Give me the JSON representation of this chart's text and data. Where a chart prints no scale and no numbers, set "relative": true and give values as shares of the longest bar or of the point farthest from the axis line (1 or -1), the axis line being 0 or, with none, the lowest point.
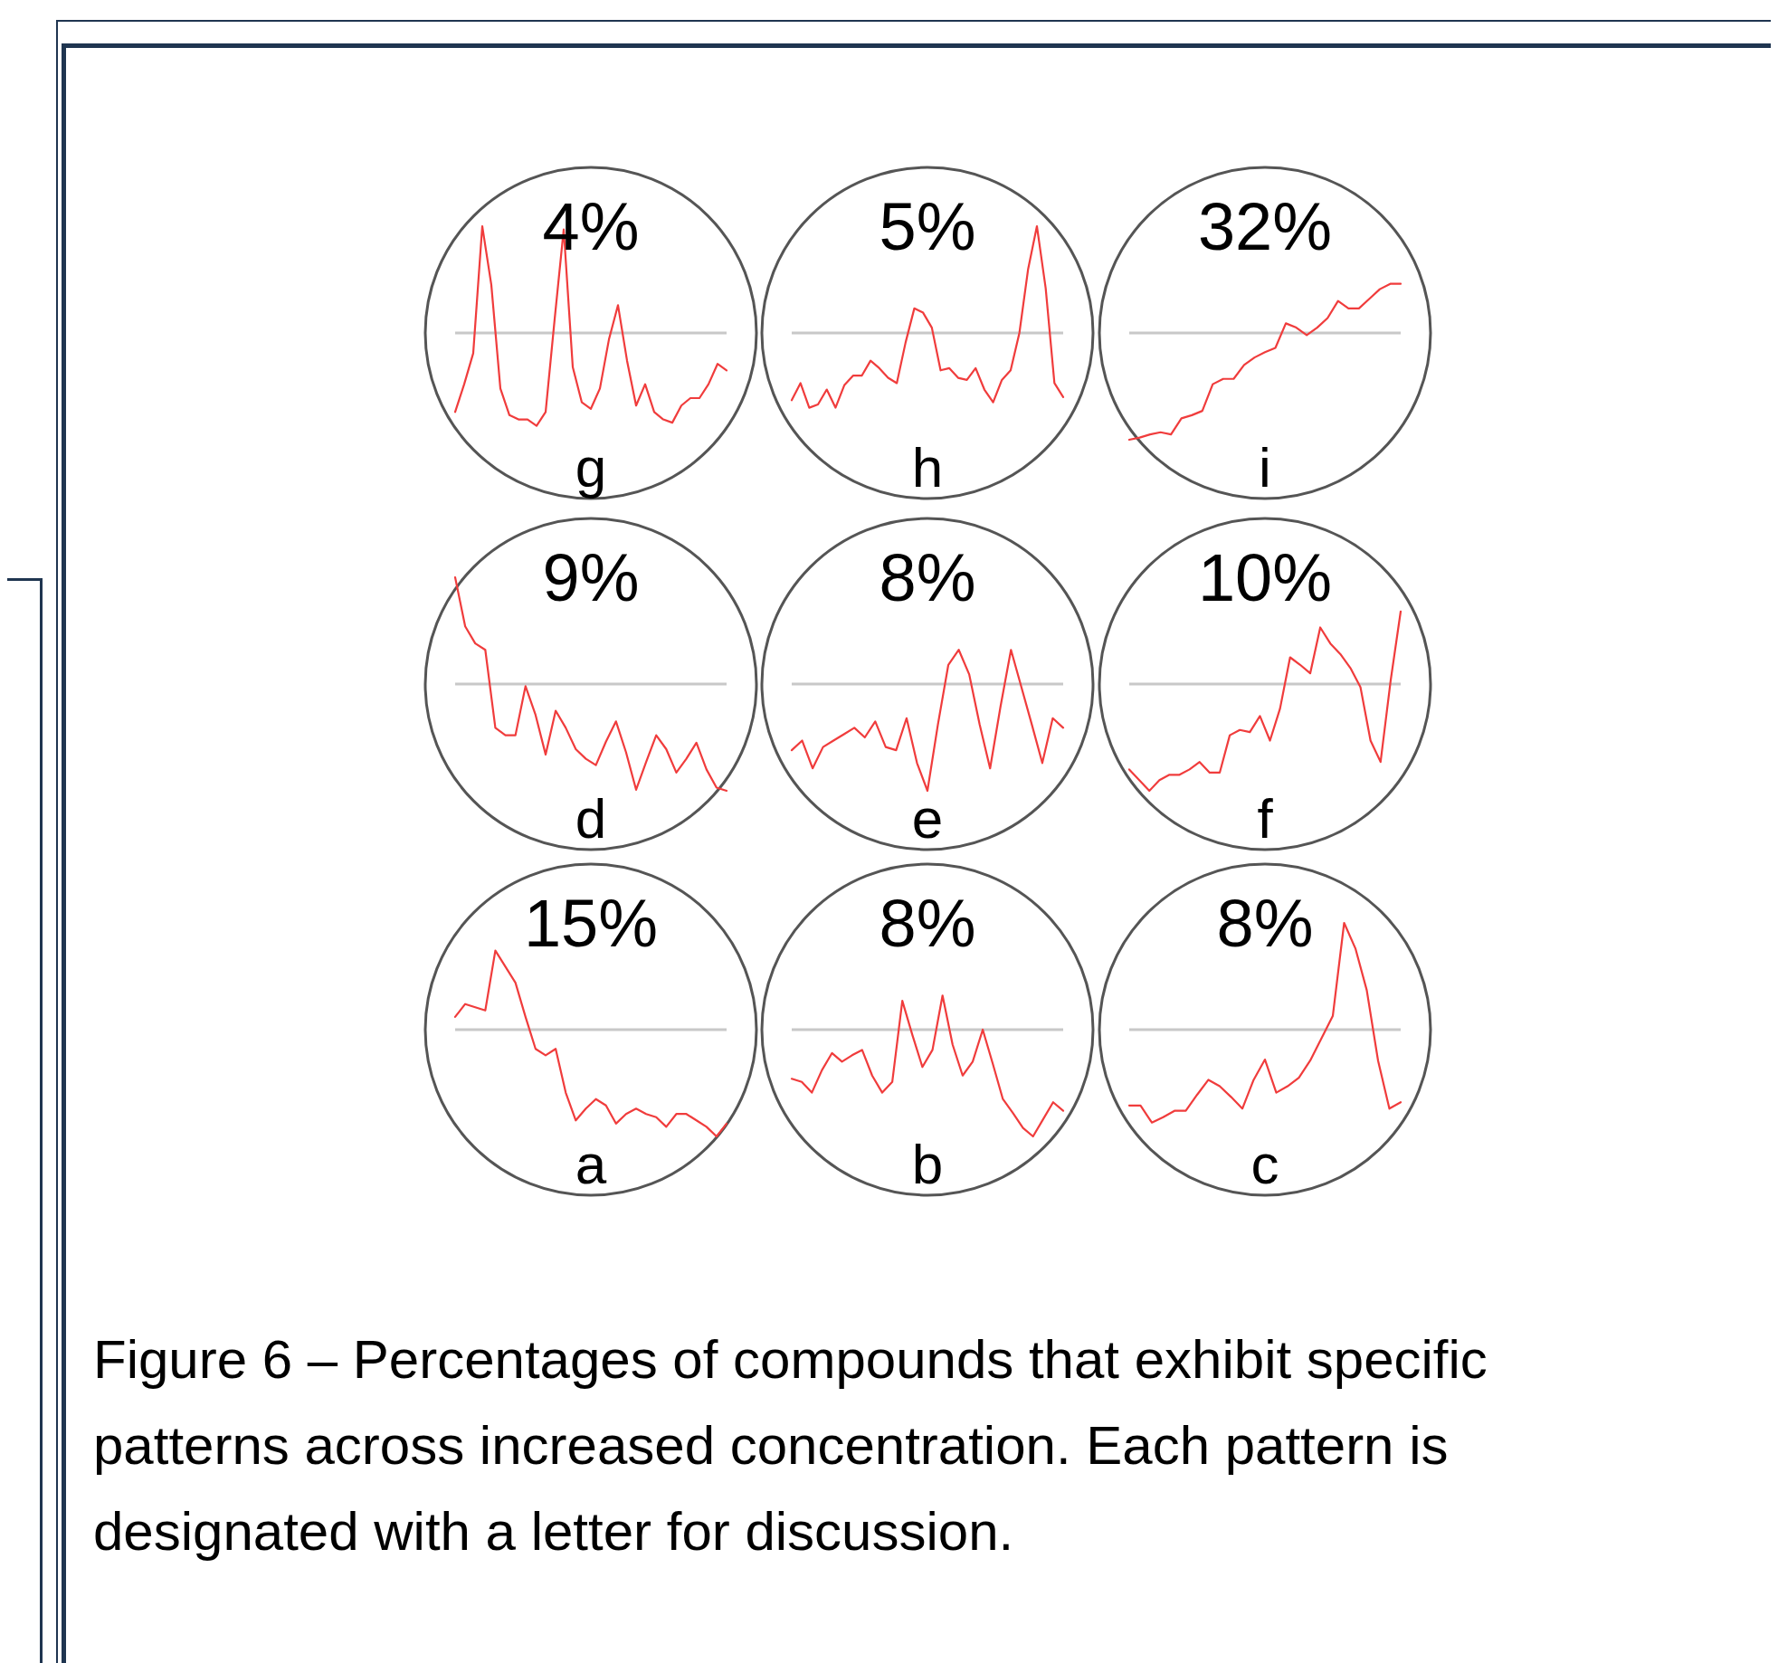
{
  "chart_data": [
    {
      "type": "line",
      "relative": true,
      "title": "4%",
      "xlabel": "g",
      "categories": [
        null,
        null,
        null,
        null,
        null,
        null,
        null,
        null,
        null,
        null,
        null,
        null,
        null,
        null,
        null,
        null,
        null,
        null,
        null,
        null,
        null,
        null,
        null,
        null,
        null,
        null,
        null,
        null,
        null,
        null,
        null
      ],
      "series": [
        {
          "color": "#f03c3c",
          "values": [
            -0.74,
            -0.48,
            -0.19,
            1.0,
            0.45,
            -0.52,
            -0.77,
            -0.81,
            -0.81,
            -0.87,
            -0.74,
            0.13,
            0.97,
            -0.32,
            -0.65,
            -0.71,
            -0.52,
            -0.06,
            0.26,
            -0.26,
            -0.68,
            -0.48,
            -0.74,
            -0.81,
            -0.84,
            -0.68,
            -0.61,
            -0.61,
            -0.48,
            -0.29,
            -0.35
          ]
        }
      ]
    },
    {
      "type": "line",
      "relative": true,
      "title": "5%",
      "xlabel": "h",
      "categories": [
        null,
        null,
        null,
        null,
        null,
        null,
        null,
        null,
        null,
        null,
        null,
        null,
        null,
        null,
        null,
        null,
        null,
        null,
        null,
        null,
        null,
        null,
        null,
        null,
        null,
        null,
        null,
        null,
        null,
        null,
        null,
        null
      ],
      "series": [
        {
          "color": "#f03c3c",
          "values": [
            -0.63,
            -0.47,
            -0.7,
            -0.67,
            -0.53,
            -0.7,
            -0.49,
            -0.4,
            -0.4,
            -0.26,
            -0.33,
            -0.42,
            -0.47,
            -0.09,
            0.23,
            0.19,
            0.05,
            -0.35,
            -0.33,
            -0.42,
            -0.44,
            -0.33,
            -0.53,
            -0.65,
            -0.44,
            -0.35,
            0,
            0.6,
            1.0,
            0.42,
            -0.47,
            -0.6
          ]
        }
      ]
    },
    {
      "type": "line",
      "relative": true,
      "title": "32%",
      "xlabel": "i",
      "categories": [
        null,
        null,
        null,
        null,
        null,
        null,
        null,
        null,
        null,
        null,
        null,
        null,
        null,
        null,
        null,
        null,
        null,
        null,
        null,
        null,
        null,
        null,
        null,
        null,
        null,
        null,
        null
      ],
      "series": [
        {
          "color": "#f03c3c",
          "values": [
            -1.0,
            -0.98,
            -0.95,
            -0.93,
            -0.95,
            -0.8,
            -0.77,
            -0.73,
            -0.48,
            -0.43,
            -0.43,
            -0.3,
            -0.23,
            -0.18,
            -0.14,
            0.09,
            0.05,
            -0.02,
            0.05,
            0.14,
            0.3,
            0.23,
            0.23,
            0.32,
            0.41,
            0.46,
            0.46
          ]
        }
      ]
    },
    {
      "type": "line",
      "relative": true,
      "title": "9%",
      "xlabel": "d",
      "categories": [
        null,
        null,
        null,
        null,
        null,
        null,
        null,
        null,
        null,
        null,
        null,
        null,
        null,
        null,
        null,
        null,
        null,
        null,
        null,
        null,
        null,
        null,
        null,
        null,
        null,
        null,
        null,
        null
      ],
      "series": [
        {
          "color": "#f03c3c",
          "values": [
            1.0,
            0.54,
            0.38,
            0.32,
            -0.41,
            -0.48,
            -0.48,
            -0.02,
            -0.29,
            -0.66,
            -0.25,
            -0.41,
            -0.61,
            -0.7,
            -0.76,
            -0.54,
            -0.35,
            -0.64,
            -0.99,
            -0.73,
            -0.48,
            -0.61,
            -0.83,
            -0.7,
            -0.55,
            -0.8,
            -0.97,
            -1.0
          ]
        }
      ]
    },
    {
      "type": "line",
      "relative": true,
      "title": "8%",
      "xlabel": "e",
      "categories": [
        null,
        null,
        null,
        null,
        null,
        null,
        null,
        null,
        null,
        null,
        null,
        null,
        null,
        null,
        null,
        null,
        null,
        null,
        null,
        null,
        null,
        null,
        null,
        null,
        null,
        null,
        null
      ],
      "series": [
        {
          "color": "#f03c3c",
          "values": [
            -0.62,
            -0.53,
            -0.79,
            -0.59,
            -0.53,
            -0.47,
            -0.41,
            -0.5,
            -0.35,
            -0.59,
            -0.62,
            -0.32,
            -0.74,
            -1.0,
            -0.38,
            0.18,
            0.32,
            0.09,
            -0.38,
            -0.79,
            -0.21,
            0.32,
            -0.03,
            -0.38,
            -0.74,
            -0.32,
            -0.41
          ]
        }
      ]
    },
    {
      "type": "line",
      "relative": true,
      "title": "10%",
      "xlabel": "f",
      "categories": [
        null,
        null,
        null,
        null,
        null,
        null,
        null,
        null,
        null,
        null,
        null,
        null,
        null,
        null,
        null,
        null,
        null,
        null,
        null,
        null,
        null,
        null,
        null,
        null,
        null,
        null,
        null,
        null
      ],
      "series": [
        {
          "color": "#f03c3c",
          "values": [
            -0.8,
            -0.9,
            -1.0,
            -0.9,
            -0.85,
            -0.85,
            -0.8,
            -0.73,
            -0.83,
            -0.83,
            -0.48,
            -0.43,
            -0.45,
            -0.3,
            -0.53,
            -0.23,
            0.25,
            0.18,
            0.1,
            0.53,
            0.38,
            0.28,
            0.15,
            -0.03,
            -0.53,
            -0.73,
            0.03,
            0.68
          ]
        }
      ]
    },
    {
      "type": "line",
      "relative": true,
      "title": "15%",
      "xlabel": "a",
      "categories": [
        null,
        null,
        null,
        null,
        null,
        null,
        null,
        null,
        null,
        null,
        null,
        null,
        null,
        null,
        null,
        null,
        null,
        null,
        null,
        null,
        null,
        null,
        null,
        null,
        null,
        null,
        null,
        null
      ],
      "series": [
        {
          "color": "#f03c3c",
          "values": [
            0.12,
            0.24,
            0.21,
            0.18,
            0.74,
            0.59,
            0.44,
            0.12,
            -0.18,
            -0.24,
            -0.18,
            -0.59,
            -0.85,
            -0.74,
            -0.65,
            -0.71,
            -0.88,
            -0.79,
            -0.74,
            -0.79,
            -0.82,
            -0.91,
            -0.79,
            -0.79,
            -0.85,
            -0.91,
            -1.0,
            -0.88
          ]
        }
      ]
    },
    {
      "type": "line",
      "relative": true,
      "title": "8%",
      "xlabel": "b",
      "categories": [
        null,
        null,
        null,
        null,
        null,
        null,
        null,
        null,
        null,
        null,
        null,
        null,
        null,
        null,
        null,
        null,
        null,
        null,
        null,
        null,
        null,
        null,
        null,
        null,
        null,
        null,
        null,
        null
      ],
      "series": [
        {
          "color": "#f03c3c",
          "values": [
            -0.46,
            -0.49,
            -0.59,
            -0.38,
            -0.22,
            -0.3,
            -0.24,
            -0.19,
            -0.43,
            -0.59,
            -0.49,
            0.27,
            -0.05,
            -0.35,
            -0.19,
            0.32,
            -0.14,
            -0.43,
            -0.3,
            0,
            -0.32,
            -0.65,
            -0.78,
            -0.92,
            -1.0,
            -0.84,
            -0.68,
            -0.76
          ]
        }
      ]
    },
    {
      "type": "line",
      "relative": true,
      "title": "8%",
      "xlabel": "c",
      "categories": [
        null,
        null,
        null,
        null,
        null,
        null,
        null,
        null,
        null,
        null,
        null,
        null,
        null,
        null,
        null,
        null,
        null,
        null,
        null,
        null,
        null,
        null,
        null,
        null,
        null
      ],
      "series": [
        {
          "color": "#f03c3c",
          "values": [
            -0.71,
            -0.71,
            -0.87,
            -0.82,
            -0.76,
            -0.76,
            -0.61,
            -0.47,
            -0.53,
            -0.63,
            -0.74,
            -0.47,
            -0.28,
            -0.59,
            -0.53,
            -0.45,
            -0.29,
            -0.08,
            0.13,
            1.0,
            0.76,
            0.37,
            -0.29,
            -0.74,
            -0.68
          ]
        }
      ]
    },
    {
      "type": "other",
      "annotations": [
        "Figure 6 – Percentages of compounds that exhibit specific patterns across increased concentration. Each pattern is designated with a letter for discussion."
      ]
    }
  ]
}
